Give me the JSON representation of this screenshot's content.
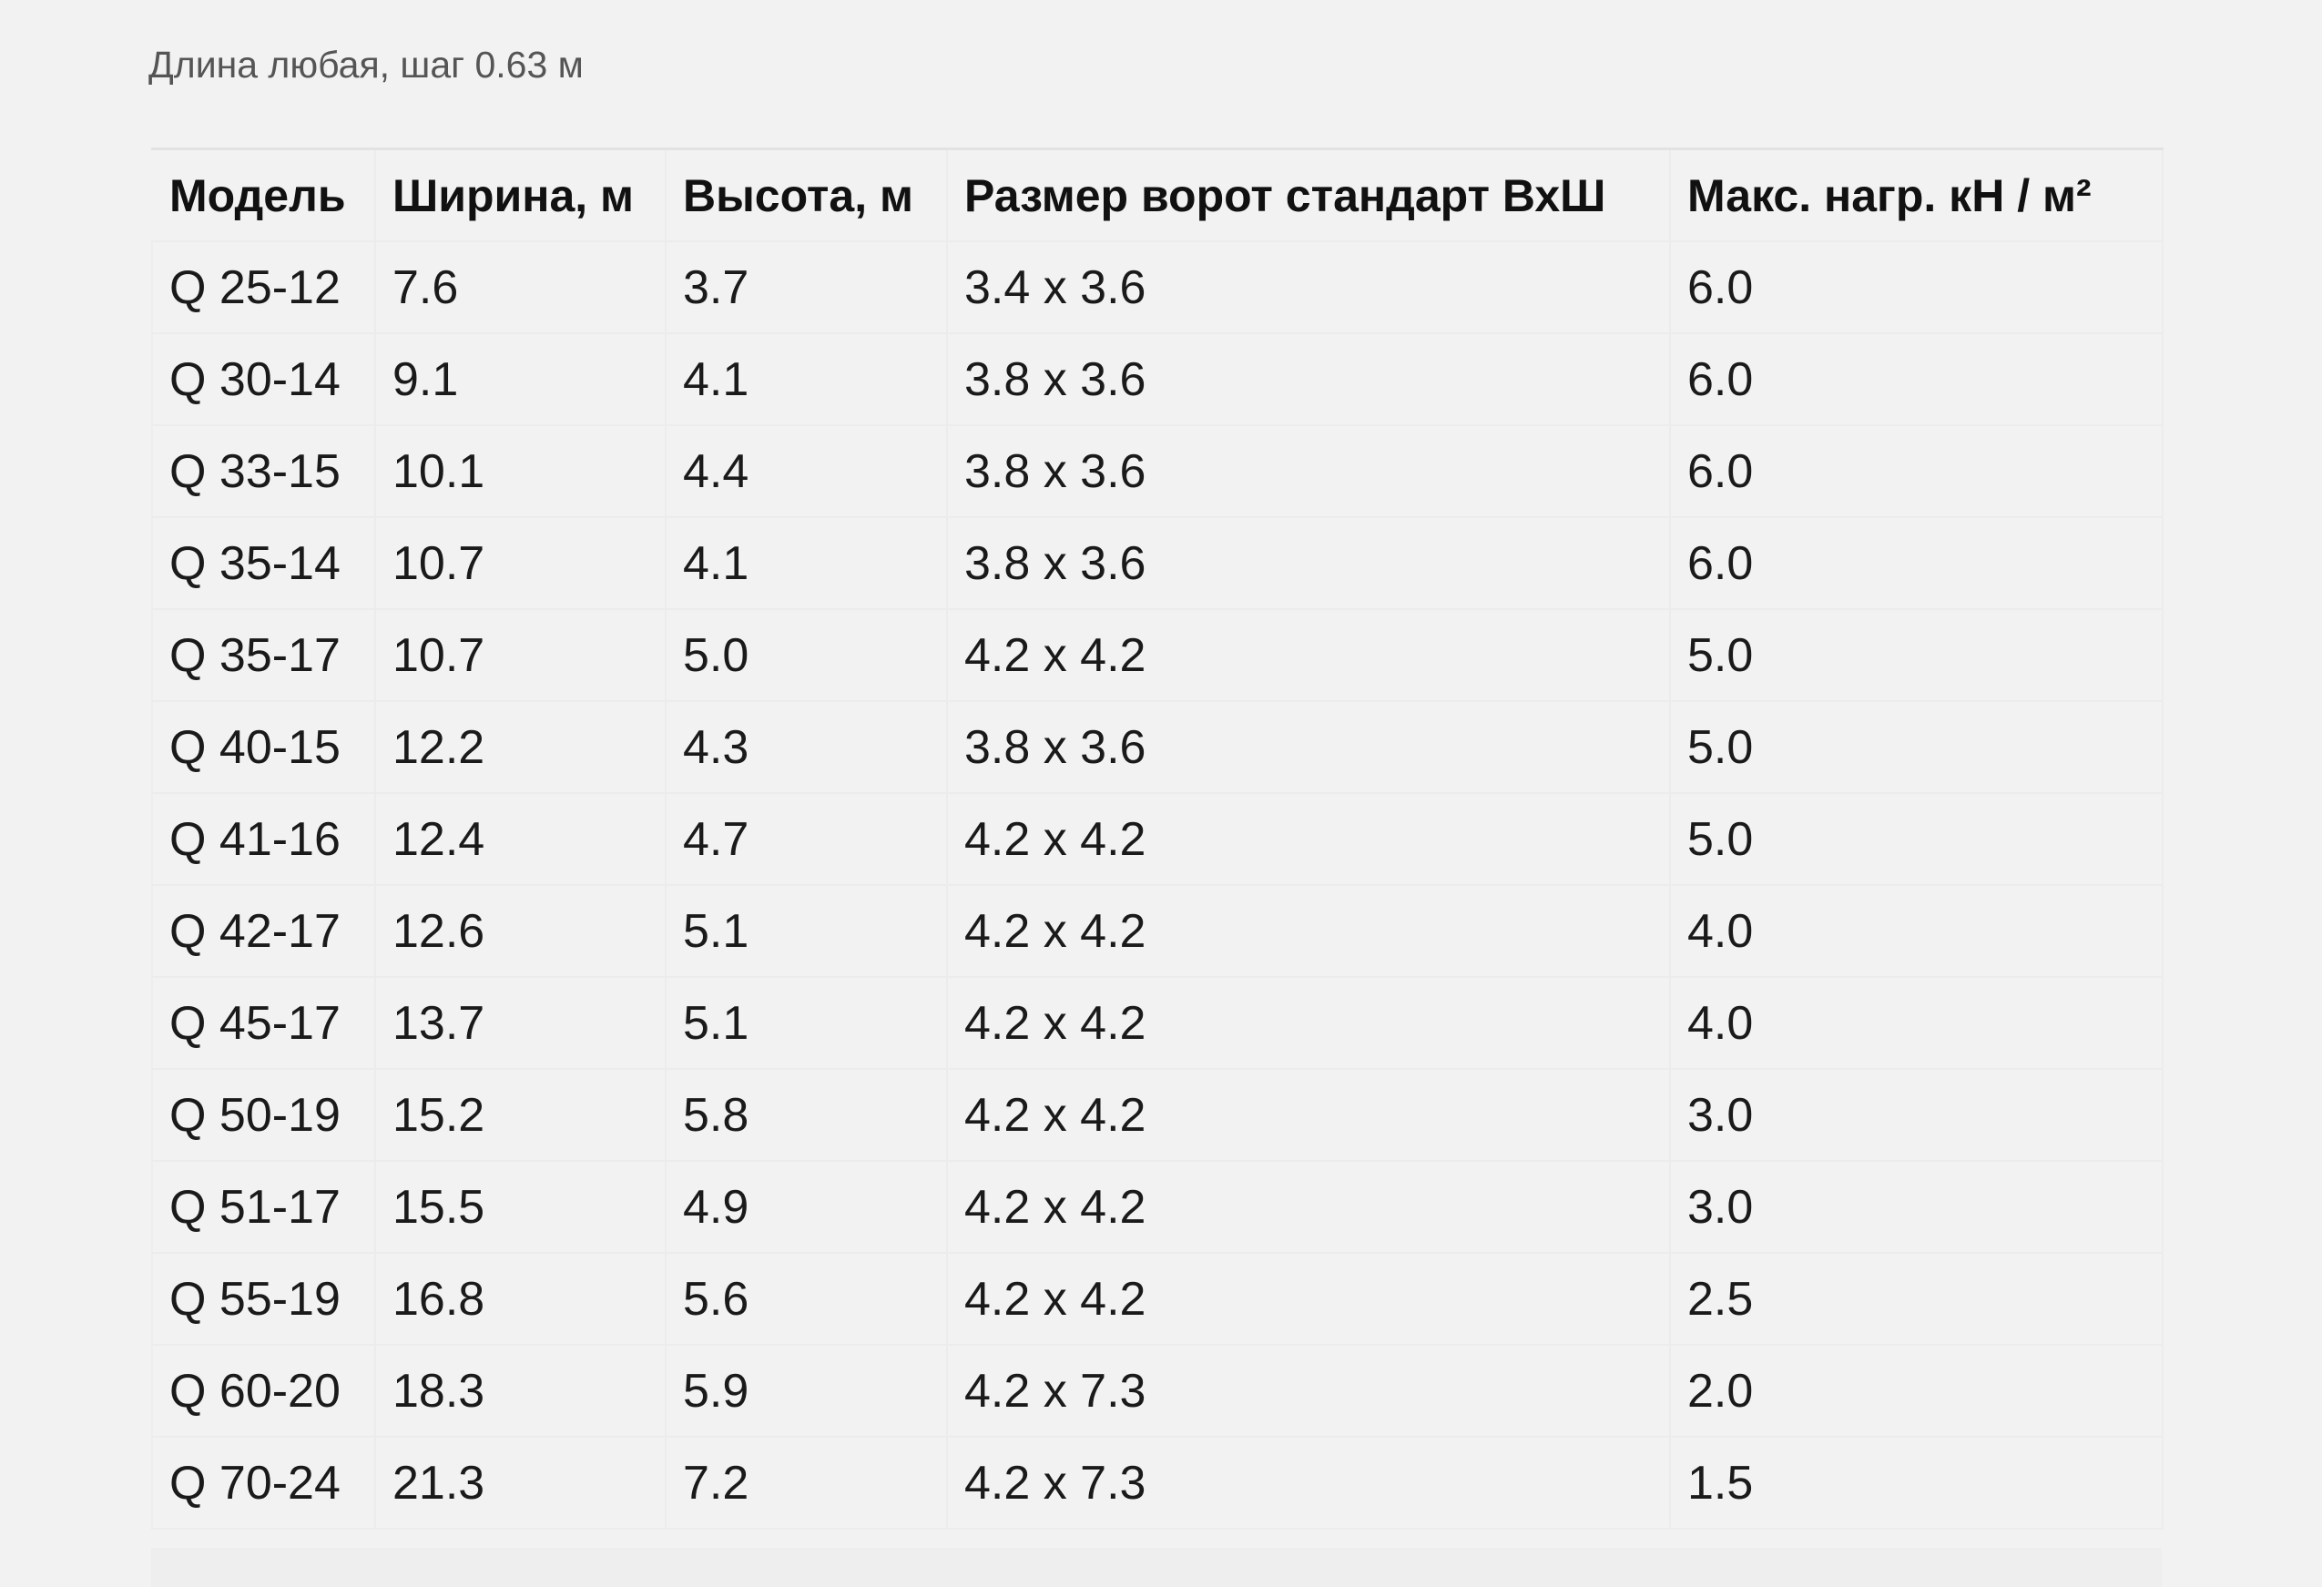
{
  "caption": "Длина любая, шаг 0.63 м",
  "table": {
    "headers": [
      "Модель",
      "Ширина, м",
      "Высота, м",
      "Размер ворот стандарт ВхШ",
      "Макс. нагр. кН /   м²"
    ],
    "rows": [
      [
        "Q 25-12",
        "7.6",
        "3.7",
        "3.4 x 3.6",
        "6.0"
      ],
      [
        "Q 30-14",
        "9.1",
        "4.1",
        "3.8 x 3.6",
        "6.0"
      ],
      [
        "Q 33-15",
        "10.1",
        "4.4",
        "3.8 x 3.6",
        "6.0"
      ],
      [
        "Q 35-14",
        "10.7",
        "4.1",
        "3.8 x 3.6",
        "6.0"
      ],
      [
        "Q 35-17",
        "10.7",
        "5.0",
        "4.2 x 4.2",
        "5.0"
      ],
      [
        "Q 40-15",
        "12.2",
        "4.3",
        "3.8 x 3.6",
        "5.0"
      ],
      [
        "Q 41-16",
        "12.4",
        "4.7",
        "4.2 x 4.2",
        "5.0"
      ],
      [
        "Q 42-17",
        "12.6",
        "5.1",
        "4.2 x 4.2",
        "4.0"
      ],
      [
        "Q 45-17",
        "13.7",
        "5.1",
        "4.2 x 4.2",
        "4.0"
      ],
      [
        "Q 50-19",
        "15.2",
        "5.8",
        "4.2 x 4.2",
        "3.0"
      ],
      [
        "Q 51-17",
        "15.5",
        "4.9",
        "4.2 x 4.2",
        "3.0"
      ],
      [
        "Q 55-19",
        "16.8",
        "5.6",
        "4.2 x 4.2",
        "2.5"
      ],
      [
        "Q 60-20",
        "18.3",
        "5.9",
        "4.2 x 7.3",
        "2.0"
      ],
      [
        "Q 70-24",
        "21.3",
        "7.2",
        "4.2 x 7.3",
        "1.5"
      ]
    ]
  }
}
